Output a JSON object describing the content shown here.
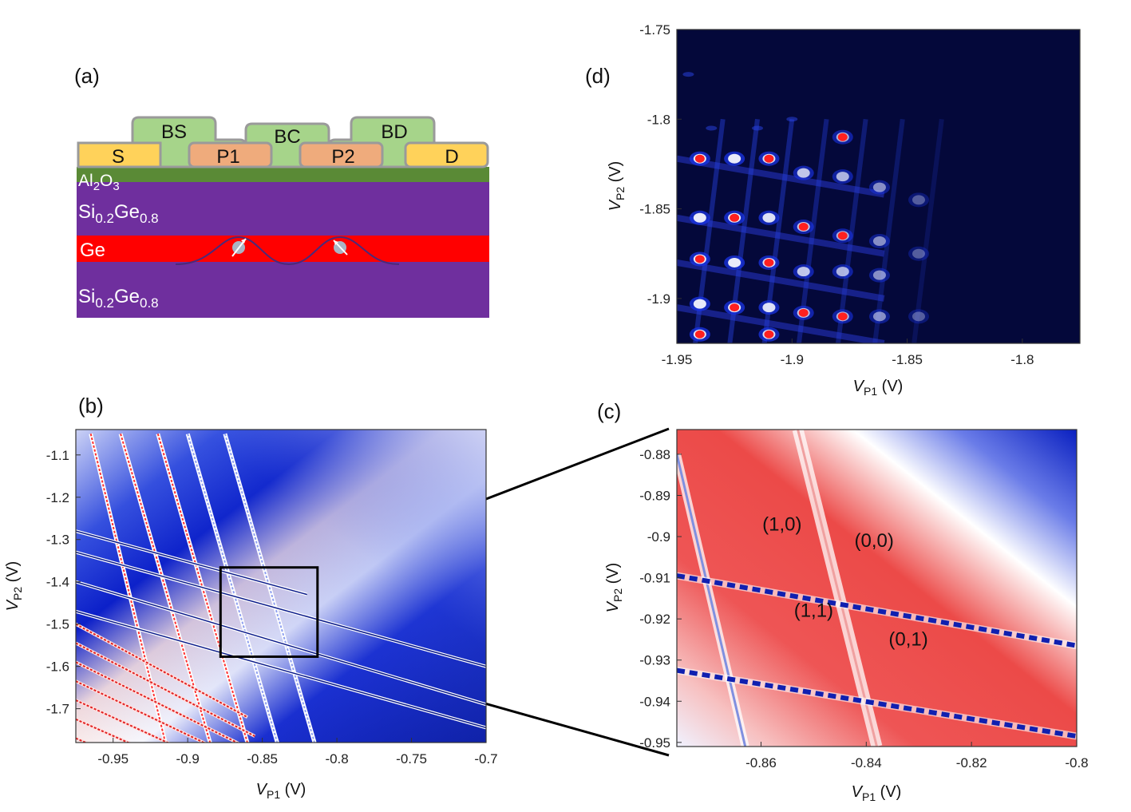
{
  "panels": {
    "a": {
      "label": "(a)",
      "gates": {
        "bs": "BS",
        "bc": "BC",
        "bd": "BD",
        "s": "S",
        "p1": "P1",
        "p2": "P2",
        "d": "D"
      },
      "layers": {
        "oxide": {
          "base": "Al",
          "sub1": "2",
          "mid": "O",
          "sub2": "3"
        },
        "sige_top": {
          "base": "Si",
          "sub1": "0.2",
          "mid": "Ge",
          "sub2": "0.8"
        },
        "ge": "Ge",
        "sige_bottom": {
          "base": "Si",
          "sub1": "0.2",
          "mid": "Ge",
          "sub2": "0.8"
        }
      },
      "colors": {
        "gate_green": "#a6d48a",
        "contact_yellow": "#ffd25a",
        "plunger_orange": "#efab7c",
        "oxide": "#5a8a36",
        "sige": "#6f2f9e",
        "ge": "#ff0000",
        "outline": "#9a9a9a"
      }
    },
    "b": {
      "label": "(b)"
    },
    "c": {
      "label": "(c)"
    },
    "d": {
      "label": "(d)"
    }
  },
  "chart_data": [
    {
      "id": "b",
      "type": "heatmap",
      "xlabel": {
        "v": "V",
        "sub": "P1",
        "unit": " (V)"
      },
      "ylabel": {
        "v": "V",
        "sub": "P2",
        "unit": " (V)"
      },
      "xlim": [
        -0.975,
        -0.7
      ],
      "ylim": [
        -1.78,
        -1.04
      ],
      "xticks": [
        -0.95,
        -0.9,
        -0.85,
        -0.8,
        -0.75,
        -0.7
      ],
      "xtick_labels": [
        "-0.95",
        "-0.9",
        "-0.85",
        "-0.8",
        "-0.75",
        "-0.7"
      ],
      "yticks": [
        -1.1,
        -1.2,
        -1.3,
        -1.4,
        -1.5,
        -1.6,
        -1.7
      ],
      "ytick_labels": [
        "-1.1",
        "-1.2",
        "-1.3",
        "-1.4",
        "-1.5",
        "-1.6",
        "-1.7"
      ],
      "zoom_box": {
        "x": [
          -0.878,
          -0.813
        ],
        "y": [
          -1.577,
          -1.366
        ]
      },
      "colors": {
        "low": "#0a1ec8",
        "mid": "#ffffff",
        "high": "#ff2a2a"
      }
    },
    {
      "id": "c",
      "type": "heatmap",
      "xlabel": {
        "v": "V",
        "sub": "P1",
        "unit": " (V)"
      },
      "ylabel": {
        "v": "V",
        "sub": "P2",
        "unit": " (V)"
      },
      "xlim": [
        -0.876,
        -0.8
      ],
      "ylim": [
        -0.951,
        -0.874
      ],
      "xticks": [
        -0.86,
        -0.84,
        -0.82,
        -0.8
      ],
      "xtick_labels": [
        "-0.86",
        "-0.84",
        "-0.82",
        "-0.8"
      ],
      "yticks": [
        -0.88,
        -0.89,
        -0.9,
        -0.91,
        -0.92,
        -0.93,
        -0.94,
        -0.95
      ],
      "ytick_labels": [
        "-0.88",
        "-0.89",
        "-0.9",
        "-0.91",
        "-0.92",
        "-0.93",
        "-0.94",
        "-0.95"
      ],
      "annotations": [
        {
          "text": "(1,0)",
          "x": -0.856,
          "y": -0.8985
        },
        {
          "text": "(0,0)",
          "x": -0.8385,
          "y": -0.9025
        },
        {
          "text": "(1,1)",
          "x": -0.85,
          "y": -0.9195
        },
        {
          "text": "(0,1)",
          "x": -0.832,
          "y": -0.9265
        }
      ],
      "colors": {
        "low": "#0a1ec8",
        "mid": "#ffffff",
        "high": "#e8342f"
      }
    },
    {
      "id": "d",
      "type": "heatmap",
      "xlabel": {
        "v": "V",
        "sub": "P1",
        "unit": " (V)"
      },
      "ylabel": {
        "v": "V",
        "sub": "P2",
        "unit": " (V)"
      },
      "xlim": [
        -1.95,
        -1.775
      ],
      "ylim": [
        -1.925,
        -1.75
      ],
      "xticks": [
        -1.95,
        -1.9,
        -1.85,
        -1.8
      ],
      "xtick_labels": [
        "-1.95",
        "-1.9",
        "-1.85",
        "-1.8"
      ],
      "yticks": [
        -1.75,
        -1.8,
        -1.85,
        -1.9
      ],
      "ytick_labels": [
        "-1.75",
        "-1.8",
        "-1.85",
        "-1.9"
      ],
      "colors": {
        "background": "#04083a",
        "low": "#0a1ec8",
        "mid": "#ffffff",
        "high": "#ff2020"
      }
    }
  ]
}
